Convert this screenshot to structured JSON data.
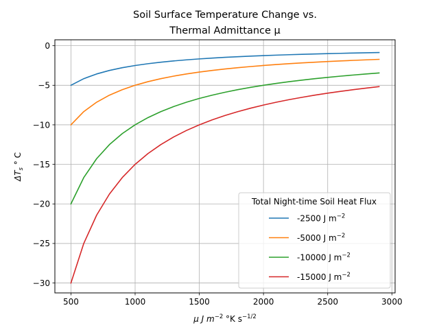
{
  "chart_data": {
    "type": "line",
    "title": [
      "Soil Surface Temperature Change vs.",
      "Thermal Admittance μ"
    ],
    "xlabel": {
      "base": "μ J m",
      "sup1": "−2",
      "mid": " °K s",
      "sup2": "−1/2"
    },
    "ylabel": {
      "delta": "ΔT",
      "sub": "s",
      "rest": " ° C"
    },
    "xlim": [
      375,
      3025
    ],
    "ylim": [
      -31.25,
      0.75
    ],
    "xticks": [
      500,
      1000,
      1500,
      2000,
      2500,
      3000
    ],
    "xtick_labels": [
      "500",
      "1000",
      "1500",
      "2000",
      "2500",
      "3000"
    ],
    "yticks": [
      0,
      -5,
      -10,
      -15,
      -20,
      -25,
      -30
    ],
    "ytick_labels": [
      "0",
      "−5",
      "−10",
      "−15",
      "−20",
      "−25",
      "−30"
    ],
    "grid": true,
    "x": [
      500,
      600,
      700,
      800,
      900,
      1000,
      1100,
      1200,
      1300,
      1400,
      1500,
      1600,
      1700,
      1800,
      1900,
      2000,
      2100,
      2200,
      2300,
      2400,
      2500,
      2600,
      2700,
      2800,
      2900
    ],
    "legend": {
      "title": "Total Night-time Soil Heat Flux",
      "placement": "lower-right"
    },
    "series": [
      {
        "name": "-2500 J m−2",
        "label": "-2500 J m",
        "sup": "−2",
        "flux": -2500,
        "color": "#1f77b4",
        "values": [
          -5.0,
          -4.167,
          -3.571,
          -3.125,
          -2.778,
          -2.5,
          -2.273,
          -2.083,
          -1.923,
          -1.786,
          -1.667,
          -1.563,
          -1.471,
          -1.389,
          -1.316,
          -1.25,
          -1.19,
          -1.136,
          -1.087,
          -1.042,
          -1.0,
          -0.962,
          -0.926,
          -0.893,
          -0.862
        ]
      },
      {
        "name": "-5000 J m−2",
        "label": "-5000 J m",
        "sup": "−2",
        "flux": -5000,
        "color": "#ff7f0e",
        "values": [
          -10.0,
          -8.333,
          -7.143,
          -6.25,
          -5.556,
          -5.0,
          -4.545,
          -4.167,
          -3.846,
          -3.571,
          -3.333,
          -3.125,
          -2.941,
          -2.778,
          -2.632,
          -2.5,
          -2.381,
          -2.273,
          -2.174,
          -2.083,
          -2.0,
          -1.923,
          -1.852,
          -1.786,
          -1.724
        ]
      },
      {
        "name": "-10000 J m−2",
        "label": "-10000 J m",
        "sup": "−2",
        "flux": -10000,
        "color": "#2ca02c",
        "values": [
          -20.0,
          -16.667,
          -14.286,
          -12.5,
          -11.111,
          -10.0,
          -9.091,
          -8.333,
          -7.692,
          -7.143,
          -6.667,
          -6.25,
          -5.882,
          -5.556,
          -5.263,
          -5.0,
          -4.762,
          -4.545,
          -4.348,
          -4.167,
          -4.0,
          -3.846,
          -3.704,
          -3.571,
          -3.448
        ]
      },
      {
        "name": "-15000 J m−2",
        "label": "-15000 J m",
        "sup": "−2",
        "flux": -15000,
        "color": "#d62728",
        "values": [
          -30.0,
          -25.0,
          -21.429,
          -18.75,
          -16.667,
          -15.0,
          -13.636,
          -12.5,
          -11.538,
          -10.714,
          -10.0,
          -9.375,
          -8.824,
          -8.333,
          -7.895,
          -7.5,
          -7.143,
          -6.818,
          -6.522,
          -6.25,
          -6.0,
          -5.769,
          -5.556,
          -5.357,
          -5.172
        ]
      }
    ]
  }
}
